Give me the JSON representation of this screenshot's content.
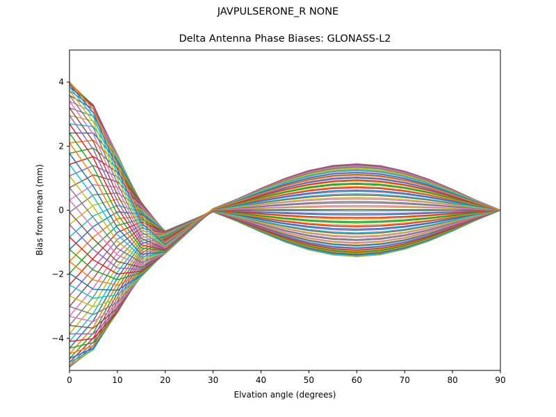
{
  "chart_data": {
    "type": "line",
    "suptitle": "JAVPULSERONE_R  NONE",
    "title": "Delta Antenna Phase Biases: GLONASS-L2",
    "xlabel": "Elvation angle (degrees)",
    "ylabel": "Bias from mean (mm)",
    "xlim": [
      0,
      90
    ],
    "ylim": [
      -5,
      5
    ],
    "xticks": [
      0,
      10,
      20,
      30,
      40,
      50,
      60,
      70,
      80,
      90
    ],
    "yticks": [
      -4,
      -2,
      0,
      2,
      4
    ],
    "grid": false,
    "legend": "none",
    "x": [
      0,
      5,
      10,
      15,
      20,
      25,
      30,
      35,
      40,
      45,
      50,
      55,
      60,
      65,
      70,
      75,
      80,
      85,
      90
    ],
    "series_family": {
      "count": 72,
      "description": "Family of phase-bias curves, one per azimuth",
      "y0_range": [
        -4.9,
        4.0
      ],
      "pattern": "Each curve starts near its y0 at 0°, converges to about -1 mm near 15–20°, crosses near 0 at ~30°, then spreads to ±1.4 mm around 55–65° and returns to 0 at 90°"
    },
    "colors": [
      "#1f77b4",
      "#ff7f0e",
      "#2ca02c",
      "#d62728",
      "#9467bd",
      "#8c564b",
      "#e377c2",
      "#7f7f7f",
      "#bcbd22",
      "#17becf"
    ]
  }
}
